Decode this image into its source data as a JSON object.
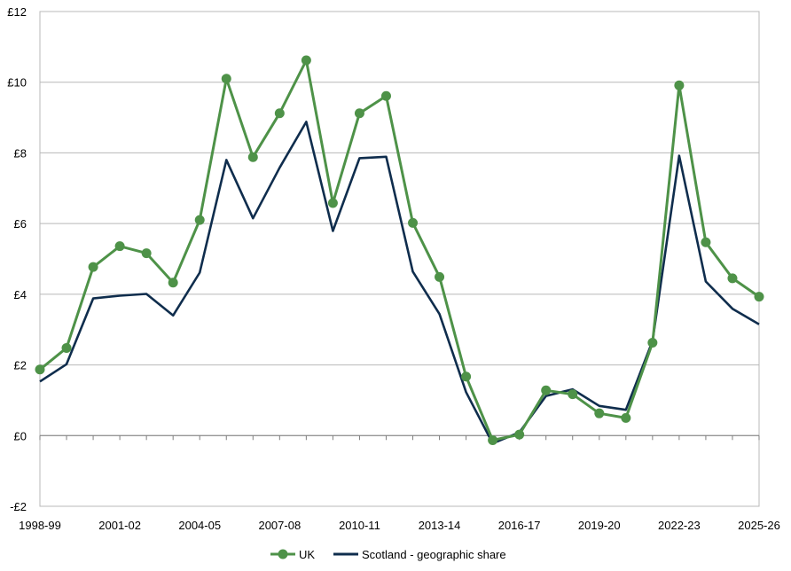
{
  "chart_data": {
    "type": "line",
    "title": "",
    "xlabel": "",
    "ylabel": "",
    "grid": true,
    "legend_position": "bottom",
    "y_prefix": "£",
    "ylim": [
      -2,
      12
    ],
    "y_ticks": [
      -2,
      0,
      2,
      4,
      6,
      8,
      10,
      12
    ],
    "y_tick_labels": [
      "-£2",
      "£0",
      "£2",
      "£4",
      "£6",
      "£8",
      "£10",
      "£12"
    ],
    "x": [
      "1998-99",
      "1999-00",
      "2000-01",
      "2001-02",
      "2002-03",
      "2003-04",
      "2004-05",
      "2005-06",
      "2006-07",
      "2007-08",
      "2008-09",
      "2009-10",
      "2010-11",
      "2011-12",
      "2012-13",
      "2013-14",
      "2014-15",
      "2015-16",
      "2016-17",
      "2017-18",
      "2018-19",
      "2019-20",
      "2020-21",
      "2021-22",
      "2022-23",
      "2023-24",
      "2024-25",
      "2025-26"
    ],
    "x_tick_labels": [
      "1998-99",
      "2001-02",
      "2004-05",
      "2007-08",
      "2010-11",
      "2013-14",
      "2016-17",
      "2019-20",
      "2022-23",
      "2025-26"
    ],
    "series": [
      {
        "name": "UK",
        "color": "#4e9248",
        "marker": "circle",
        "values": [
          1.87,
          2.48,
          4.77,
          5.36,
          5.16,
          4.33,
          6.1,
          10.1,
          7.88,
          9.12,
          10.62,
          6.58,
          9.12,
          9.61,
          6.02,
          4.49,
          1.67,
          -0.13,
          0.03,
          1.28,
          1.17,
          0.63,
          0.5,
          2.63,
          9.91,
          5.47,
          4.45,
          3.93
        ]
      },
      {
        "name": "Scotland - geographic share",
        "color": "#0f2d4d",
        "marker": "none",
        "values": [
          1.53,
          2.02,
          3.88,
          3.96,
          4.01,
          3.4,
          4.61,
          7.8,
          6.15,
          7.58,
          8.88,
          5.79,
          7.85,
          7.89,
          4.64,
          3.44,
          1.23,
          -0.22,
          0.09,
          1.12,
          1.31,
          0.84,
          0.73,
          2.68,
          7.92,
          4.36,
          3.59,
          3.15
        ]
      }
    ]
  }
}
